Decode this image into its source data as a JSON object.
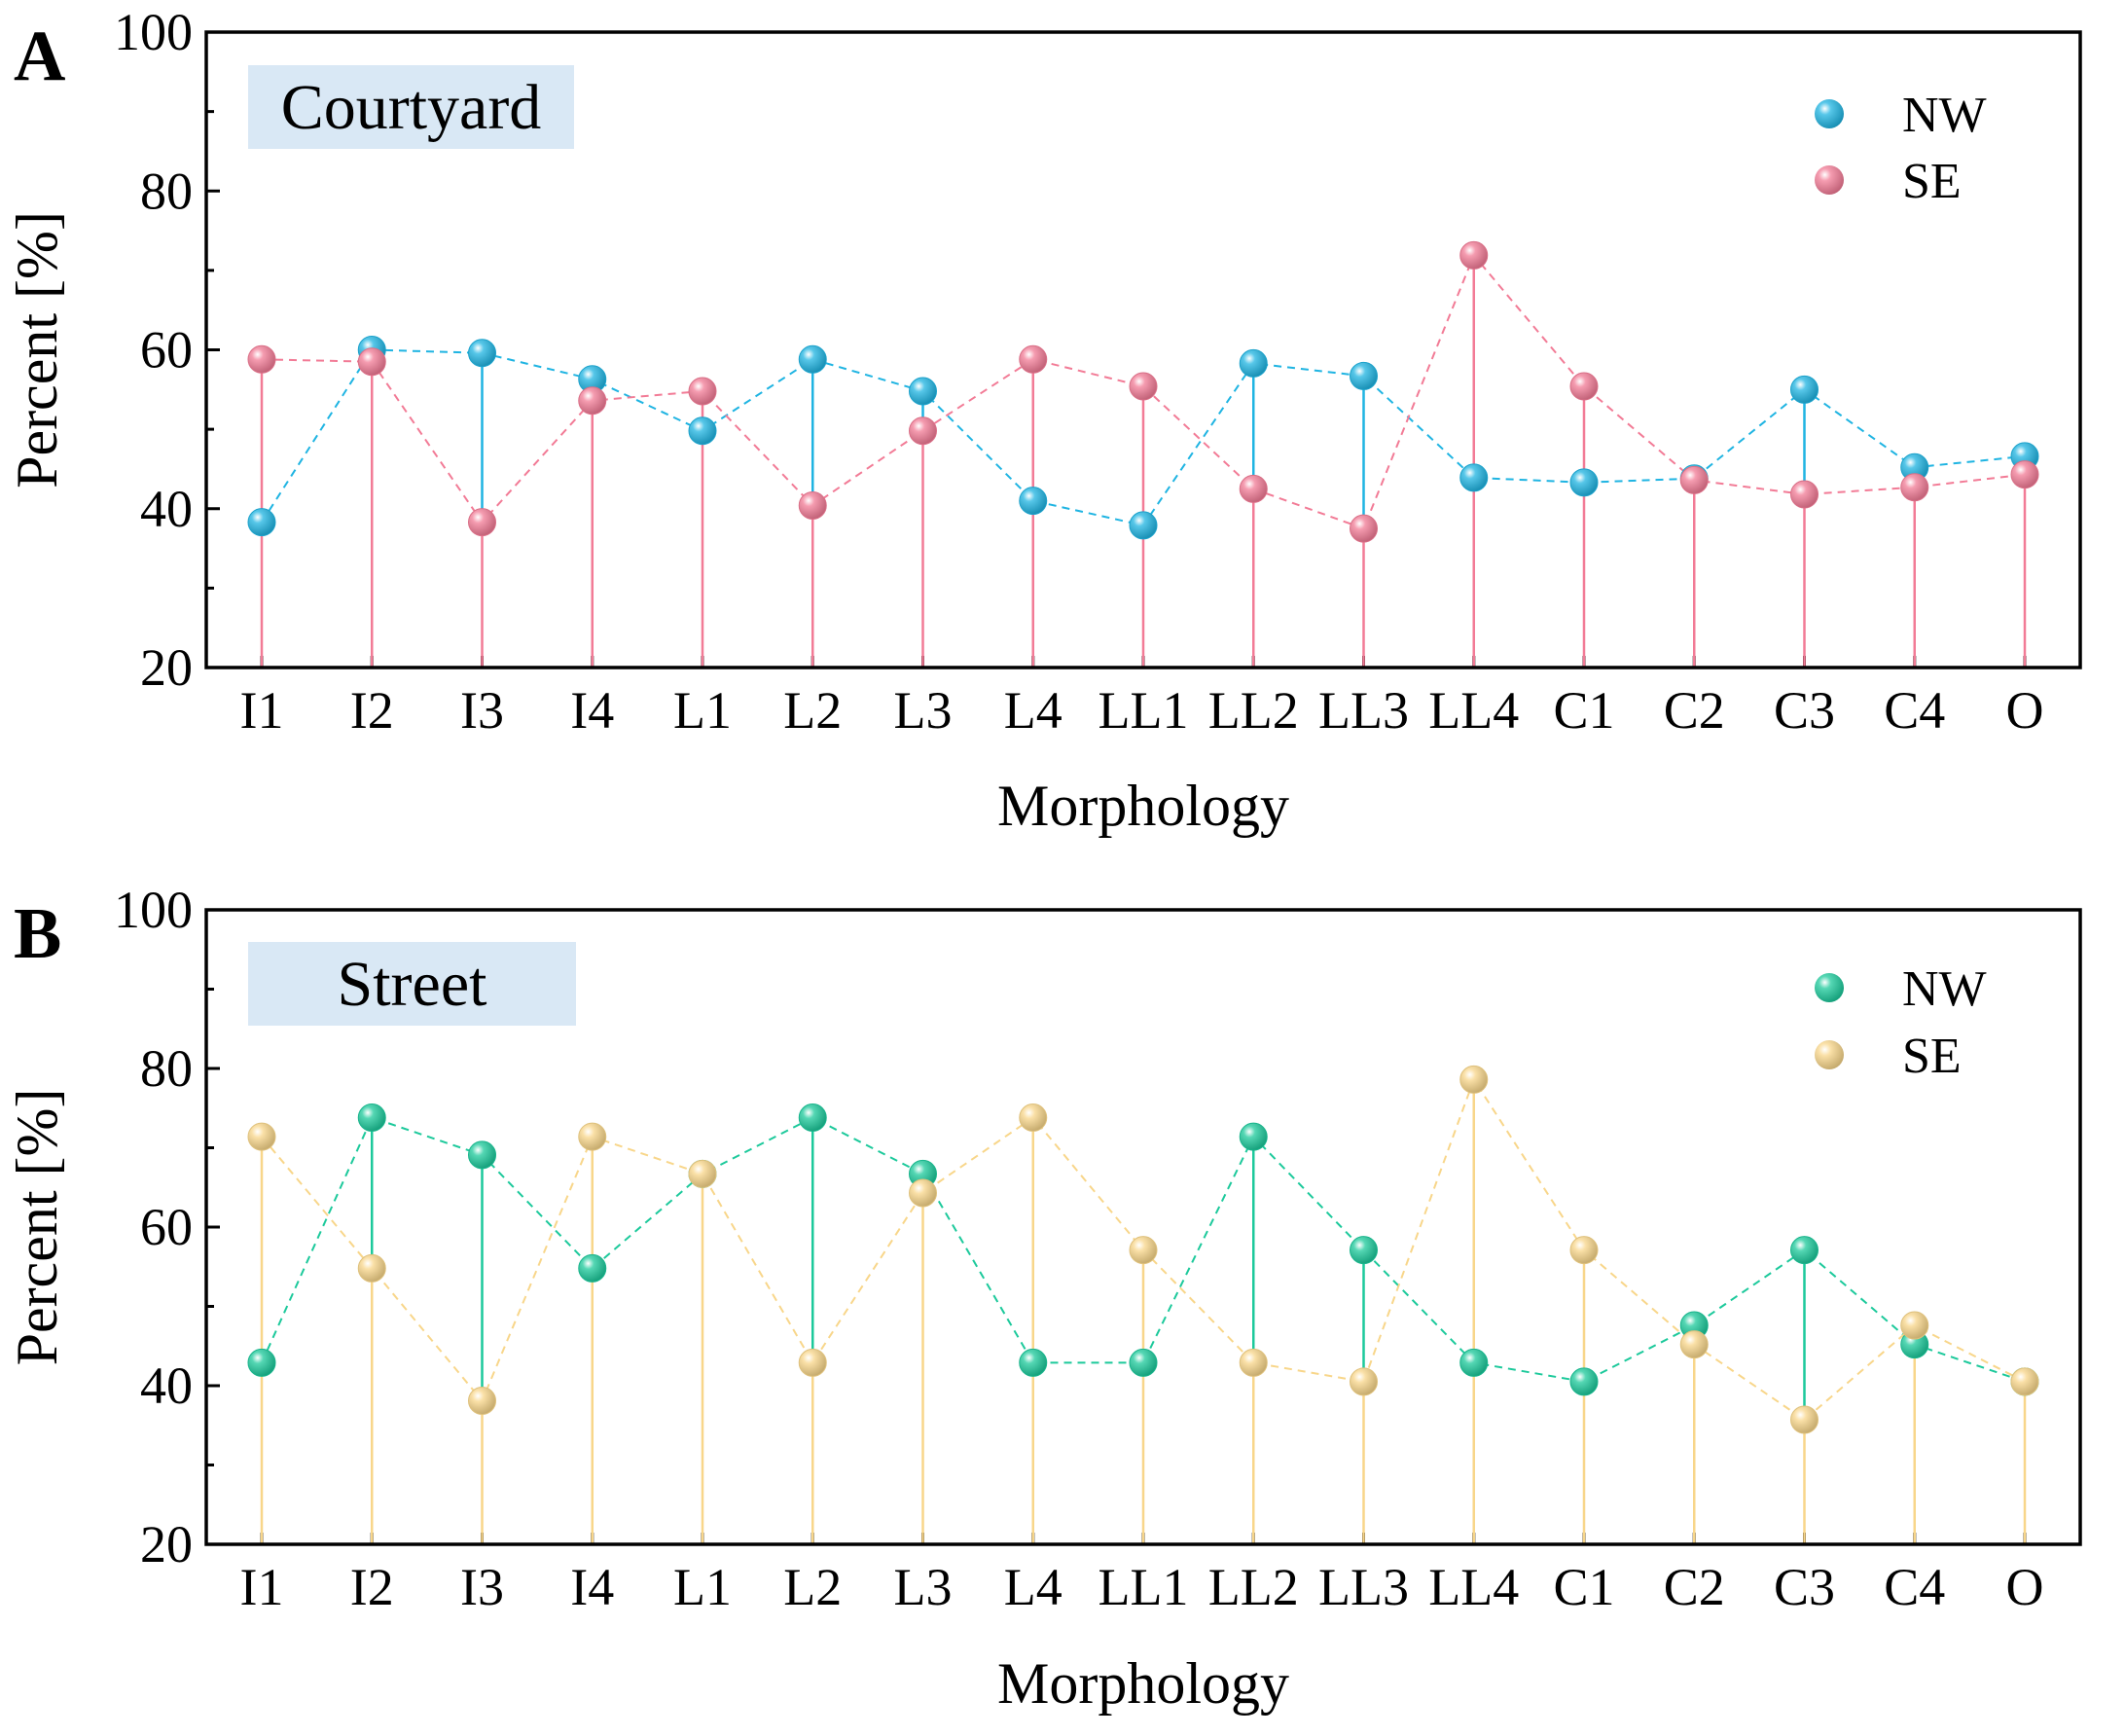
{
  "panels": [
    {
      "letter": "A",
      "title": "Courtyard",
      "title_bg": "#d9e8f5",
      "colors": {
        "NW": "#1fb4e2",
        "SE": "#f27b96"
      }
    },
    {
      "letter": "B",
      "title": "Street",
      "title_bg": "#d9e8f5",
      "colors": {
        "NW": "#1cc99b",
        "SE": "#f8d68a"
      }
    }
  ],
  "chart_data": [
    {
      "type": "scatter",
      "title": "Courtyard",
      "xlabel": "Morphology",
      "ylabel": "Percent [%]",
      "ylim": [
        20,
        100
      ],
      "yticks": [
        20,
        40,
        60,
        80,
        100
      ],
      "categories": [
        "I1",
        "I2",
        "I3",
        "I4",
        "L1",
        "L2",
        "L3",
        "L4",
        "LL1",
        "LL2",
        "LL3",
        "LL4",
        "C1",
        "C2",
        "C3",
        "C4",
        "O"
      ],
      "legend_position": "top-right",
      "series": [
        {
          "name": "NW",
          "values": [
            38.3,
            60.0,
            59.6,
            56.3,
            49.8,
            58.8,
            54.8,
            41.0,
            37.9,
            58.3,
            56.7,
            43.9,
            43.3,
            43.8,
            55.0,
            45.2,
            46.6
          ]
        },
        {
          "name": "SE",
          "values": [
            58.8,
            58.5,
            38.3,
            53.6,
            54.8,
            40.4,
            49.8,
            58.8,
            55.4,
            42.5,
            37.5,
            71.9,
            55.4,
            43.6,
            41.8,
            42.7,
            44.3
          ]
        }
      ]
    },
    {
      "type": "scatter",
      "title": "Street",
      "xlabel": "Morphology",
      "ylabel": "Percent [%]",
      "ylim": [
        20,
        100
      ],
      "yticks": [
        20,
        40,
        60,
        80,
        100
      ],
      "categories": [
        "I1",
        "I2",
        "I3",
        "I4",
        "L1",
        "L2",
        "L3",
        "L4",
        "LL1",
        "LL2",
        "LL3",
        "LL4",
        "C1",
        "C2",
        "C3",
        "C4",
        "O"
      ],
      "legend_position": "top-right",
      "series": [
        {
          "name": "NW",
          "values": [
            42.9,
            73.8,
            69.1,
            54.8,
            66.7,
            73.8,
            66.7,
            42.9,
            42.9,
            71.4,
            57.1,
            42.9,
            40.5,
            47.6,
            57.1,
            45.2,
            40.5
          ]
        },
        {
          "name": "SE",
          "values": [
            71.4,
            54.8,
            38.1,
            71.4,
            66.7,
            42.9,
            64.3,
            73.8,
            57.1,
            42.9,
            40.5,
            78.6,
            57.1,
            45.2,
            35.7,
            47.6,
            40.5
          ]
        }
      ]
    }
  ]
}
